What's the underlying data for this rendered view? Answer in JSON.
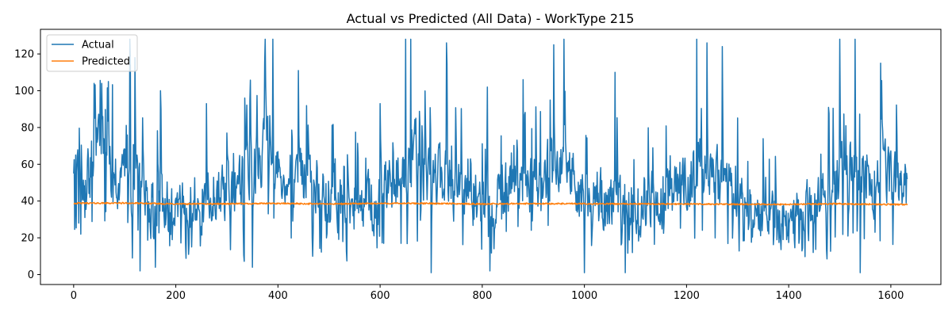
{
  "chart_data": {
    "type": "line",
    "title": "Actual vs Predicted (All Data) - WorkType 215",
    "xlabel": "",
    "ylabel": "",
    "xlim": [
      -65,
      1698
    ],
    "ylim": [
      -5.4,
      133.4
    ],
    "xticks": [
      0,
      200,
      400,
      600,
      800,
      1000,
      1200,
      1400,
      1600
    ],
    "yticks": [
      0,
      20,
      40,
      60,
      80,
      100,
      120
    ],
    "grid": false,
    "legend_position": "top-left",
    "series": [
      {
        "name": "Actual",
        "color": "#1f77b4",
        "x_start": 0,
        "x_step": 1,
        "n_points": 1633,
        "anchors": [
          [
            0,
            55
          ],
          [
            20,
            40
          ],
          [
            40,
            70
          ],
          [
            60,
            65
          ],
          [
            80,
            52
          ],
          [
            100,
            55
          ],
          [
            130,
            45
          ],
          [
            150,
            38
          ],
          [
            200,
            36
          ],
          [
            250,
            40
          ],
          [
            300,
            45
          ],
          [
            340,
            55
          ],
          [
            380,
            70
          ],
          [
            420,
            55
          ],
          [
            450,
            50
          ],
          [
            500,
            42
          ],
          [
            550,
            38
          ],
          [
            600,
            42
          ],
          [
            650,
            60
          ],
          [
            700,
            55
          ],
          [
            750,
            45
          ],
          [
            800,
            40
          ],
          [
            850,
            45
          ],
          [
            900,
            50
          ],
          [
            950,
            62
          ],
          [
            1000,
            45
          ],
          [
            1050,
            40
          ],
          [
            1100,
            38
          ],
          [
            1150,
            42
          ],
          [
            1200,
            52
          ],
          [
            1230,
            60
          ],
          [
            1280,
            48
          ],
          [
            1300,
            40
          ],
          [
            1350,
            30
          ],
          [
            1400,
            28
          ],
          [
            1450,
            35
          ],
          [
            1500,
            55
          ],
          [
            1530,
            62
          ],
          [
            1560,
            42
          ],
          [
            1580,
            60
          ],
          [
            1600,
            50
          ],
          [
            1633,
            45
          ]
        ],
        "notable_values": [
          [
            0,
            55
          ],
          [
            4,
            65
          ],
          [
            6,
            56
          ],
          [
            10,
            28
          ],
          [
            14,
            22
          ],
          [
            40,
            104
          ],
          [
            55,
            104
          ],
          [
            68,
            105
          ],
          [
            110,
            128
          ],
          [
            115,
            9
          ],
          [
            120,
            118
          ],
          [
            130,
            2
          ],
          [
            170,
            100
          ],
          [
            160,
            4
          ],
          [
            260,
            93
          ],
          [
            300,
            77
          ],
          [
            335,
            96
          ],
          [
            350,
            4
          ],
          [
            375,
            128
          ],
          [
            390,
            128
          ],
          [
            440,
            111
          ],
          [
            600,
            93
          ],
          [
            650,
            128
          ],
          [
            660,
            128
          ],
          [
            700,
            1
          ],
          [
            730,
            126
          ],
          [
            810,
            102
          ],
          [
            815,
            2
          ],
          [
            880,
            106
          ],
          [
            940,
            125
          ],
          [
            960,
            128
          ],
          [
            1000,
            1
          ],
          [
            1060,
            110
          ],
          [
            1080,
            1
          ],
          [
            1220,
            128
          ],
          [
            1240,
            126
          ],
          [
            1270,
            124
          ],
          [
            1500,
            128
          ],
          [
            1530,
            128
          ],
          [
            1540,
            1
          ],
          [
            1580,
            115
          ],
          [
            1633,
            60
          ]
        ],
        "range_y": [
          1,
          128
        ]
      },
      {
        "name": "Predicted",
        "color": "#ff7f0e",
        "x_start": 0,
        "x_step": 1,
        "n_points": 1633,
        "anchors": [
          [
            0,
            38.8
          ],
          [
            100,
            38.9
          ],
          [
            200,
            38.4
          ],
          [
            300,
            38.5
          ],
          [
            400,
            38.7
          ],
          [
            500,
            38.4
          ],
          [
            600,
            38.7
          ],
          [
            700,
            38.7
          ],
          [
            800,
            38.4
          ],
          [
            900,
            38.6
          ],
          [
            1000,
            38.5
          ],
          [
            1100,
            38.4
          ],
          [
            1200,
            38.4
          ],
          [
            1300,
            38.2
          ],
          [
            1400,
            38.2
          ],
          [
            1500,
            38.5
          ],
          [
            1600,
            38.1
          ],
          [
            1633,
            38.1
          ]
        ],
        "range_y": [
          37.5,
          40.0
        ]
      }
    ]
  }
}
